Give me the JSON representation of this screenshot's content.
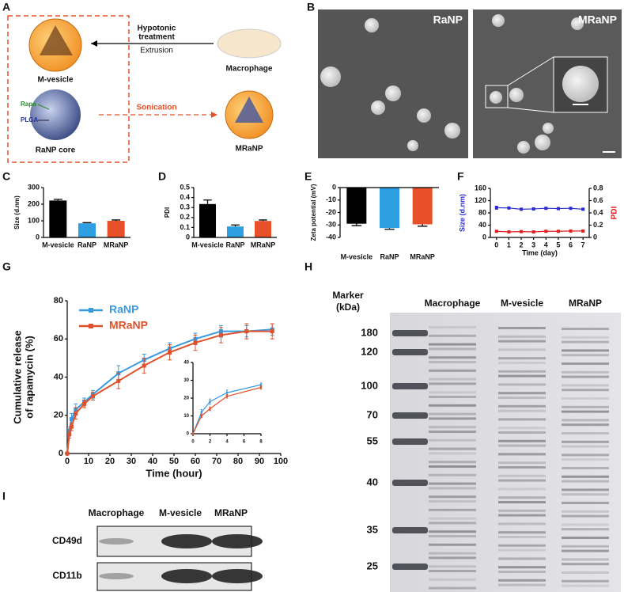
{
  "panel_labels": [
    "A",
    "B",
    "C",
    "D",
    "E",
    "F",
    "G",
    "H",
    "I"
  ],
  "diagram": {
    "hypotonic": [
      "Hypotonic",
      "treatment"
    ],
    "extrusion": "Extrusion",
    "macrophage": "Macrophage",
    "m_vesicle": "M-vesicle",
    "rapa": "Rapa",
    "plga": "PLGA",
    "core": "RaNP core",
    "sonication": "Sonication",
    "mranp": "MRaNP"
  },
  "tem": {
    "labels": [
      "RaNP",
      "MRaNP"
    ]
  },
  "chart_data": [
    {
      "type": "bar",
      "ylabel": "Size (d.nm)",
      "categories": [
        "M-vesicle",
        "RaNP",
        "MRaNP"
      ],
      "values": [
        222,
        85,
        100
      ],
      "errors": [
        7,
        4,
        5
      ],
      "colors": [
        "#000000",
        "#2e9fe0",
        "#e8502a"
      ],
      "ylim": [
        0,
        300
      ],
      "yticks": [
        0,
        100,
        200,
        300
      ]
    },
    {
      "type": "bar",
      "ylabel": "PDI",
      "categories": [
        "M-vesicle",
        "RaNP",
        "MRaNP"
      ],
      "values": [
        0.335,
        0.11,
        0.165
      ],
      "errors": [
        0.04,
        0.015,
        0.01
      ],
      "colors": [
        "#000000",
        "#2e9fe0",
        "#e8502a"
      ],
      "ylim": [
        0,
        0.5
      ],
      "yticks": [
        0,
        0.1,
        0.2,
        0.3,
        0.4,
        0.5
      ]
    },
    {
      "type": "bar",
      "ylabel": "Zeta potential (mV)",
      "categories": [
        "M-vesicle",
        "RaNP",
        "MRaNP"
      ],
      "values": [
        -29,
        -32.5,
        -29.5
      ],
      "errors": [
        1.5,
        1,
        1.5
      ],
      "colors": [
        "#000000",
        "#2e9fe0",
        "#e8502a"
      ],
      "ylim": [
        -40,
        0
      ],
      "yticks": [
        -40,
        -30,
        -20,
        -10,
        0
      ]
    },
    {
      "type": "line",
      "xlabel": "Time (day)",
      "ylabel": [
        "Size (d.nm)"
      ],
      "y2label": "PDI",
      "x": [
        0,
        1,
        2,
        3,
        4,
        5,
        6,
        7
      ],
      "xlim": [
        -0.5,
        7.5
      ],
      "xticks": [
        0,
        1,
        2,
        3,
        4,
        5,
        6,
        7
      ],
      "ylim": [
        0,
        160
      ],
      "yticks": [
        0,
        40,
        80,
        120,
        160
      ],
      "y2lim": [
        0,
        0.8
      ],
      "y2ticks": [
        0,
        0.2,
        0.4,
        0.6,
        0.8
      ],
      "series": [
        {
          "color": "#2b2bd0",
          "values": [
            97,
            96,
            92,
            93,
            95,
            94,
            95,
            92
          ],
          "errors": [
            5,
            3,
            2,
            2,
            2,
            2,
            2,
            2
          ]
        },
        {
          "color": "#e02020",
          "axis": "y2",
          "values": [
            0.1,
            0.09,
            0.095,
            0.09,
            0.1,
            0.1,
            0.105,
            0.105
          ],
          "errors": [
            0.015,
            0.015,
            0.01,
            0.01,
            0.015,
            0.01,
            0.01,
            0.01
          ]
        }
      ]
    },
    {
      "type": "line",
      "xlabel": "Time (hour)",
      "ylabel": [
        "Cumulative release",
        "of rapamycin (%)"
      ],
      "x": [
        0,
        1,
        2,
        4,
        8,
        12,
        24,
        36,
        48,
        60,
        72,
        84,
        96
      ],
      "xlim": [
        0,
        100
      ],
      "xticks": [
        0,
        10,
        20,
        30,
        40,
        50,
        60,
        70,
        80,
        90,
        100
      ],
      "ylim": [
        0,
        80
      ],
      "yticks": [
        0,
        20,
        40,
        60,
        80
      ],
      "legend": "upper left",
      "series": [
        {
          "name": "RaNP",
          "color": "#3a9ae0",
          "values": [
            0,
            12,
            18,
            23,
            27,
            31,
            42,
            49,
            55,
            60,
            64,
            64,
            65
          ],
          "errors": [
            0,
            2,
            3,
            3,
            2,
            2,
            4,
            3,
            3,
            3,
            3,
            3,
            3
          ]
        },
        {
          "name": "MRaNP",
          "color": "#e0502a",
          "values": [
            0,
            10,
            14,
            21,
            26,
            30,
            38,
            46,
            53,
            58,
            62,
            64,
            64
          ],
          "errors": [
            0,
            2,
            2,
            3,
            2,
            2,
            4,
            4,
            4,
            4,
            4,
            4,
            4
          ]
        }
      ]
    },
    {
      "type": "line",
      "x": [
        0,
        1,
        2,
        4,
        8
      ],
      "xlim": [
        0,
        8
      ],
      "xticks": [
        0,
        2,
        4,
        6,
        8
      ],
      "ylim": [
        0,
        40
      ],
      "yticks": [
        0,
        10,
        20,
        30,
        40
      ],
      "series": [
        {
          "color": "#3a9ae0",
          "values": [
            0,
            12,
            18,
            23,
            27.5
          ],
          "errors": [
            0,
            1.5,
            1.5,
            1.5,
            1
          ]
        },
        {
          "color": "#e0502a",
          "values": [
            0,
            10,
            14,
            21,
            26
          ],
          "errors": [
            0,
            1,
            1,
            1,
            1
          ]
        }
      ]
    }
  ],
  "gel": {
    "title": [
      "Marker",
      "(kDa)"
    ],
    "lanes": [
      "Macrophage",
      "M-vesicle",
      "MRaNP"
    ],
    "markers": [
      180,
      120,
      100,
      70,
      55,
      40,
      35,
      25
    ]
  },
  "blot": {
    "lanes": [
      "Macrophage",
      "M-vesicle",
      "MRaNP"
    ],
    "rows": [
      "CD49d",
      "CD11b"
    ]
  }
}
